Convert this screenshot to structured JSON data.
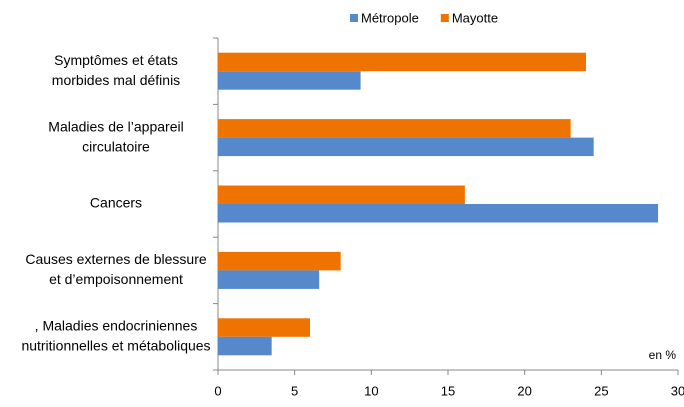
{
  "chart_data": {
    "type": "hbar",
    "categories": [
      [
        "Symptômes et états",
        "morbides mal définis"
      ],
      [
        "Maladies de l’appareil",
        "circulatoire"
      ],
      [
        "Cancers"
      ],
      [
        "Causes externes de blessure",
        "et d’empoisonnement"
      ],
      [
        ",      Maladies endocriniennes",
        "nutritionnelles et métaboliques"
      ]
    ],
    "series": [
      {
        "name": "Métropole",
        "color": "#5689cc",
        "values": [
          9.3,
          24.5,
          28.7,
          6.6,
          3.5
        ]
      },
      {
        "name": "Mayotte",
        "color": "#ee7300",
        "values": [
          24.0,
          23.0,
          16.1,
          8.0,
          6.0
        ]
      }
    ],
    "xlabel": "en %",
    "xlim": [
      0,
      30
    ],
    "xticks": [
      0,
      5,
      10,
      15,
      20,
      25,
      30
    ]
  }
}
